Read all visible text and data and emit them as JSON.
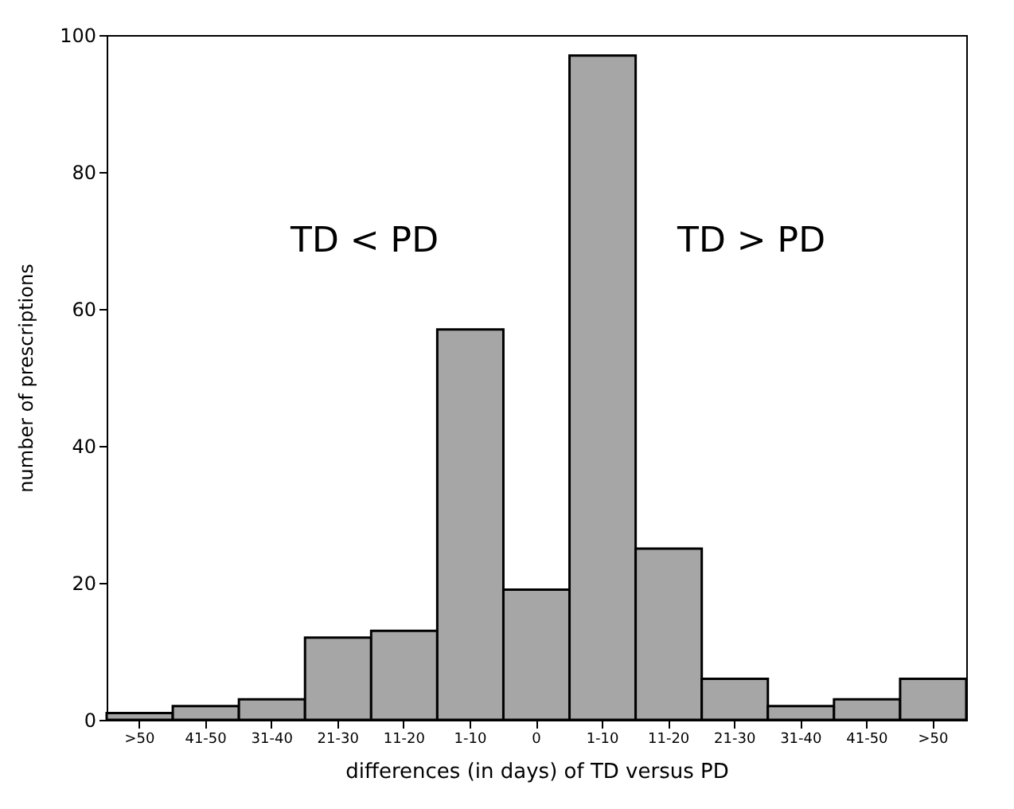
{
  "chart_data": {
    "type": "bar",
    "xlabel": "differences (in days) of TD versus PD",
    "ylabel": "number of prescriptions",
    "categories": [
      ">50",
      "41-50",
      "31-40",
      "21-30",
      "11-20",
      "1-10",
      "0",
      "1-10",
      "11-20",
      "21-30",
      "31-40",
      "41-50",
      ">50"
    ],
    "values": [
      1,
      2,
      3,
      12,
      13,
      57,
      19,
      97,
      25,
      6,
      2,
      3,
      6
    ],
    "color": "#a6a6a6",
    "ylim": [
      0,
      100
    ],
    "yticks": [
      0,
      20,
      40,
      60,
      80,
      100
    ],
    "grid": false,
    "annotations": [
      "TD < PD",
      "TD > PD"
    ]
  }
}
